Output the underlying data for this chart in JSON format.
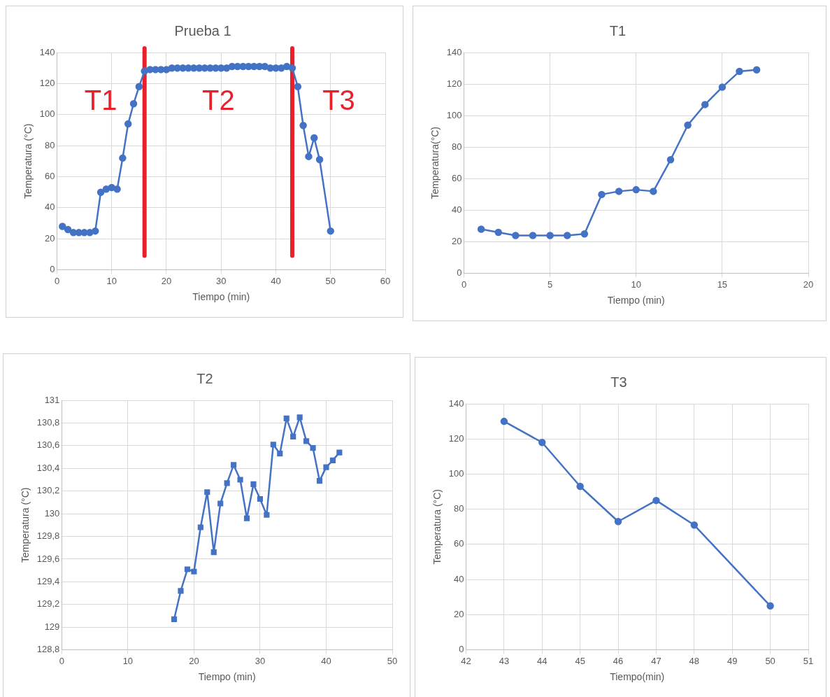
{
  "chart_data": [
    {
      "type": "line",
      "title": "Prueba 1",
      "xlabel": "Tiempo (min)",
      "ylabel": "Temperatura (°C)",
      "x": [
        1,
        2,
        3,
        4,
        5,
        6,
        7,
        8,
        9,
        10,
        11,
        12,
        13,
        14,
        15,
        16,
        17,
        18,
        19,
        20,
        21,
        22,
        23,
        24,
        25,
        26,
        27,
        28,
        29,
        30,
        31,
        32,
        33,
        34,
        35,
        36,
        37,
        38,
        39,
        40,
        41,
        42,
        43,
        44,
        45,
        46,
        47,
        48,
        50
      ],
      "series": [
        {
          "color": "#4472c4",
          "values": [
            28,
            26,
            24,
            24,
            24,
            24,
            25,
            50,
            52,
            53,
            52,
            72,
            94,
            107,
            118,
            128,
            129,
            129,
            129,
            129,
            130,
            130,
            130,
            130,
            130,
            130,
            130,
            130,
            130,
            130,
            130,
            131,
            131,
            131,
            131,
            131,
            131,
            131,
            130,
            130,
            130,
            131,
            130,
            118,
            93,
            73,
            85,
            71,
            25
          ]
        }
      ],
      "xlim": [
        0,
        60
      ],
      "xticks": [
        0,
        10,
        20,
        30,
        40,
        50,
        60
      ],
      "ylim": [
        0,
        140
      ],
      "yticks": [
        0,
        20,
        40,
        60,
        80,
        100,
        120,
        140
      ],
      "grid": true,
      "marker": "circle",
      "ref_lines": [
        {
          "axis": "x",
          "value": 16,
          "color": "#e8202a"
        },
        {
          "axis": "x",
          "value": 43,
          "color": "#e8202a"
        }
      ],
      "annotations": [
        "T1",
        "T2",
        "T3"
      ]
    },
    {
      "type": "line",
      "title": "T1",
      "xlabel": "Tiempo (min)",
      "ylabel": "Temperatura(°C)",
      "x": [
        1,
        2,
        3,
        4,
        5,
        6,
        7,
        8,
        9,
        10,
        11,
        12,
        13,
        14,
        15,
        16,
        17
      ],
      "series": [
        {
          "color": "#4472c4",
          "values": [
            28,
            26,
            24,
            24,
            24,
            24,
            25,
            50,
            52,
            53,
            52,
            72,
            94,
            107,
            118,
            128,
            129
          ]
        }
      ],
      "xlim": [
        0,
        20
      ],
      "xticks": [
        0,
        5,
        10,
        15,
        20
      ],
      "ylim": [
        0,
        140
      ],
      "yticks": [
        0,
        20,
        40,
        60,
        80,
        100,
        120,
        140
      ],
      "grid": true,
      "marker": "circle"
    },
    {
      "type": "line",
      "title": "T2",
      "xlabel": "Tiempo (min)",
      "ylabel": "Temperatura (°C)",
      "x": [
        17,
        18,
        19,
        20,
        21,
        22,
        23,
        24,
        25,
        26,
        27,
        28,
        29,
        30,
        31,
        32,
        33,
        34,
        35,
        36,
        37,
        38,
        39,
        40,
        41,
        42
      ],
      "series": [
        {
          "color": "#4472c4",
          "values": [
            129.07,
            129.32,
            129.51,
            129.49,
            129.88,
            130.19,
            129.66,
            130.09,
            130.27,
            130.43,
            130.3,
            129.96,
            130.26,
            130.13,
            129.99,
            130.61,
            130.53,
            130.84,
            130.68,
            130.85,
            130.64,
            130.58,
            130.29,
            130.41,
            130.47,
            130.54
          ]
        }
      ],
      "xlim": [
        0,
        50
      ],
      "xticks": [
        0,
        10,
        20,
        30,
        40,
        50
      ],
      "ylim": [
        128.8,
        131
      ],
      "yticks": [
        {
          "value": 128.8,
          "label": "128,8"
        },
        129,
        {
          "value": 129.2,
          "label": "129,2"
        },
        {
          "value": 129.4,
          "label": "129,4"
        },
        {
          "value": 129.6,
          "label": "129,6"
        },
        {
          "value": 129.8,
          "label": "129,8"
        },
        130,
        {
          "value": 130.2,
          "label": "130,2"
        },
        {
          "value": 130.4,
          "label": "130,4"
        },
        {
          "value": 130.6,
          "label": "130,6"
        },
        {
          "value": 130.8,
          "label": "130,8"
        },
        131
      ],
      "grid": true,
      "marker": "square"
    },
    {
      "type": "line",
      "title": "T3",
      "xlabel": "Tiempo(min)",
      "ylabel": "Temperatura (°C)",
      "x": [
        43,
        44,
        45,
        46,
        47,
        48,
        50
      ],
      "series": [
        {
          "color": "#4472c4",
          "values": [
            130,
            118,
            93,
            73,
            85,
            71,
            25
          ]
        }
      ],
      "xlim": [
        42,
        51
      ],
      "xticks": [
        42,
        43,
        44,
        45,
        46,
        47,
        48,
        49,
        50,
        51
      ],
      "ylim": [
        0,
        140
      ],
      "yticks": [
        0,
        20,
        40,
        60,
        80,
        100,
        120,
        140
      ],
      "grid": true,
      "marker": "circle"
    }
  ]
}
